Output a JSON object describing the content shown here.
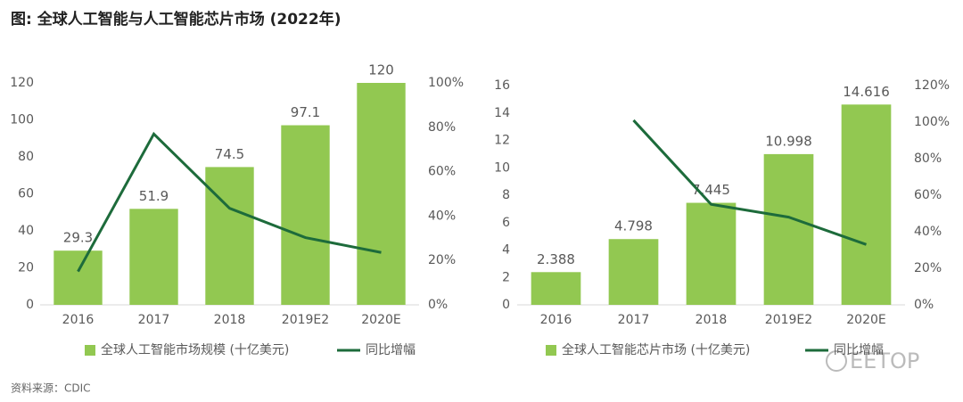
{
  "header": {
    "title": "图: 全球人工智能与人工智能芯片市场 (2022年)"
  },
  "source": "资料来源：CDIC",
  "watermark": "EETOP",
  "chart_data": [
    {
      "type": "bar",
      "categories": [
        "2016",
        "2017",
        "2018",
        "2019E2",
        "2020E"
      ],
      "series": [
        {
          "name": "全球人工智能市场规模 (十亿美元)",
          "type": "bar",
          "color": "#92c851",
          "values": [
            29.3,
            51.9,
            74.5,
            97.1,
            120
          ]
        },
        {
          "name": "同比增幅",
          "type": "line",
          "axis": "y2",
          "color": "#1d6b3b",
          "values": [
            15,
            77,
            43.5,
            30.3,
            23.6
          ]
        }
      ],
      "ylim": [
        0,
        120
      ],
      "yticks": [
        0,
        20,
        40,
        60,
        80,
        100,
        120
      ],
      "y2lim": [
        0,
        100
      ],
      "y2ticks": [
        {
          "value": 0,
          "label": "0%"
        },
        {
          "value": 20,
          "label": "20%"
        },
        {
          "value": 40,
          "label": "40%"
        },
        {
          "value": 60,
          "label": "60%"
        },
        {
          "value": 80,
          "label": "80%"
        },
        {
          "value": 100,
          "label": "100%"
        }
      ],
      "data_labels": true
    },
    {
      "type": "bar",
      "categories": [
        "2016",
        "2017",
        "2018",
        "2019E2",
        "2020E"
      ],
      "series": [
        {
          "name": "全球人工智能芯片市场 (十亿美元)",
          "type": "bar",
          "color": "#92c851",
          "values": [
            2.388,
            4.798,
            7.445,
            10.998,
            14.616
          ]
        },
        {
          "name": "同比增幅",
          "type": "line",
          "axis": "y2",
          "color": "#1d6b3b",
          "values": [
            null,
            101,
            55,
            48,
            33
          ]
        }
      ],
      "ylim": [
        0,
        16
      ],
      "yticks": [
        0,
        2,
        4,
        6,
        8,
        10,
        12,
        14,
        16
      ],
      "y2lim": [
        0,
        120
      ],
      "y2ticks": [
        {
          "value": 0,
          "label": "0%"
        },
        {
          "value": 20,
          "label": "20%"
        },
        {
          "value": 40,
          "label": "40%"
        },
        {
          "value": 60,
          "label": "60%"
        },
        {
          "value": 80,
          "label": "80%"
        },
        {
          "value": 100,
          "label": "100%"
        },
        {
          "value": 120,
          "label": "120%"
        }
      ],
      "data_labels": true
    }
  ]
}
